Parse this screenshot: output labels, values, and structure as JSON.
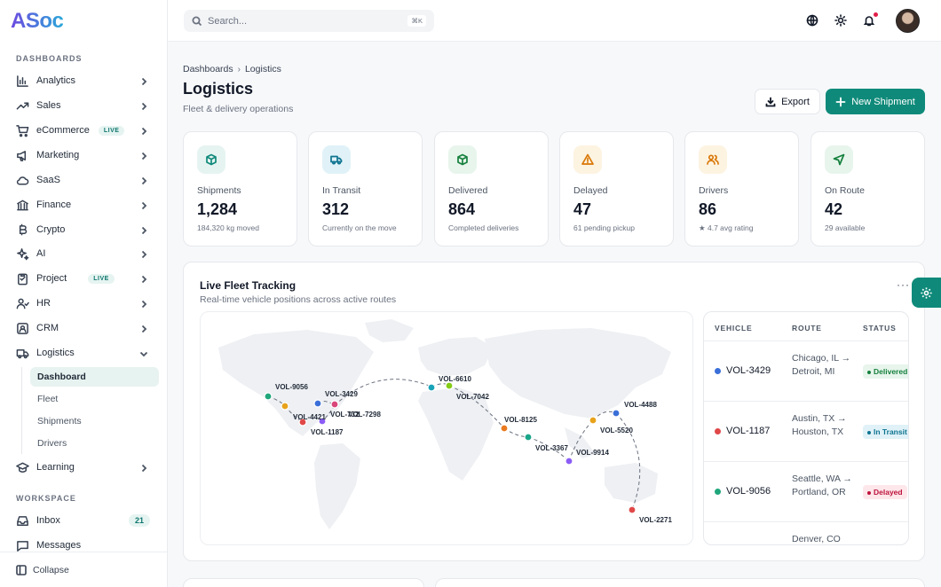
{
  "app": {
    "logo": "ASoc"
  },
  "sidebar": {
    "sections": {
      "dashboards": "DASHBOARDS",
      "workspace": "WORKSPACE"
    },
    "items": [
      {
        "label": "Analytics",
        "icon": "bar-chart-icon"
      },
      {
        "label": "Sales",
        "icon": "trending-up-icon"
      },
      {
        "label": "eCommerce",
        "icon": "cart-icon",
        "badge": "LIVE"
      },
      {
        "label": "Marketing",
        "icon": "megaphone-icon"
      },
      {
        "label": "SaaS",
        "icon": "cloud-icon"
      },
      {
        "label": "Finance",
        "icon": "bank-icon"
      },
      {
        "label": "Crypto",
        "icon": "bitcoin-icon"
      },
      {
        "label": "AI",
        "icon": "sparkles-icon"
      },
      {
        "label": "Project",
        "icon": "clipboard-icon",
        "badge": "LIVE"
      },
      {
        "label": "HR",
        "icon": "users-icon"
      },
      {
        "label": "CRM",
        "icon": "contact-icon"
      },
      {
        "label": "Logistics",
        "icon": "truck-icon"
      },
      {
        "label": "Learning",
        "icon": "graduation-cap-icon"
      }
    ],
    "logistics_sub": [
      "Dashboard",
      "Fleet",
      "Shipments",
      "Drivers"
    ],
    "workspace_items": [
      {
        "label": "Inbox",
        "icon": "inbox-icon",
        "count": "21"
      },
      {
        "label": "Messages",
        "icon": "message-icon"
      }
    ],
    "collapse_label": "Collapse"
  },
  "topbar": {
    "search_placeholder": "Search...",
    "shortcut": "⌘K"
  },
  "breadcrumb": {
    "root": "Dashboards",
    "current": "Logistics"
  },
  "header": {
    "title": "Logistics",
    "subtitle": "Fleet & delivery operations",
    "export_label": "Export",
    "new_label": "New Shipment"
  },
  "stats": [
    {
      "label": "Shipments",
      "value": "1,284",
      "sub": "184,320 kg moved",
      "icon": "box-icon",
      "color": "#0f8a7a",
      "bg": "#e6f4f1"
    },
    {
      "label": "In Transit",
      "value": "312",
      "sub": "Currently on the move",
      "icon": "truck-icon",
      "color": "#0e7490",
      "bg": "#e0f2f8"
    },
    {
      "label": "Delivered",
      "value": "864",
      "sub": "Completed deliveries",
      "icon": "box-check-icon",
      "color": "#15803d",
      "bg": "#e7f5ec"
    },
    {
      "label": "Delayed",
      "value": "47",
      "sub": "61 pending pickup",
      "icon": "alert-triangle-icon",
      "color": "#d97706",
      "bg": "#fdf3e1"
    },
    {
      "label": "Drivers",
      "value": "86",
      "sub": "★ 4.7 avg rating",
      "icon": "users-icon",
      "color": "#d97706",
      "bg": "#fdf3e1"
    },
    {
      "label": "On Route",
      "value": "42",
      "sub": "29 available",
      "icon": "navigation-icon",
      "color": "#15803d",
      "bg": "#e7f5ec"
    }
  ],
  "fleet": {
    "title": "Live Fleet Tracking",
    "subtitle": "Real-time vehicle positions across active routes",
    "map_labels": [
      "VOL-9056",
      "VOL-3429",
      "VOL-4421",
      "VOL-7298",
      "VOL-1187",
      "VOL-6610",
      "VOL-7042",
      "VOL-8125",
      "VOL-3367",
      "VOL-9914",
      "VOL-4488",
      "VOL-5520",
      "VOL-2271",
      "VOL-732"
    ],
    "table": {
      "headers": [
        "VEHICLE",
        "ROUTE",
        "STATUS"
      ],
      "rows": [
        {
          "vehicle": "VOL-3429",
          "route": "Chicago, IL → Detroit, MI",
          "status": "Delivered",
          "dot": "#3b6fd8",
          "status_color": "#15803d",
          "status_bg": "#e7f5ec"
        },
        {
          "vehicle": "VOL-1187",
          "route": "Austin, TX → Houston, TX",
          "status": "In Transit",
          "dot": "#e04848",
          "status_color": "#0e7490",
          "status_bg": "#e0f2f8"
        },
        {
          "vehicle": "VOL-9056",
          "route": "Seattle, WA → Portland, OR",
          "status": "Delayed",
          "dot": "#1fa67a",
          "status_color": "#be123c",
          "status_bg": "#fde7ea"
        },
        {
          "vehicle": "",
          "route": "Denver, CO",
          "status": "",
          "dot": "",
          "status_color": "",
          "status_bg": ""
        }
      ]
    }
  }
}
